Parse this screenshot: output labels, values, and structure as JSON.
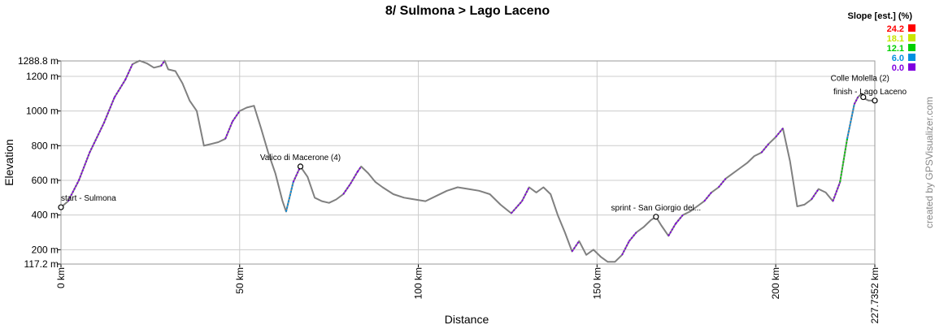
{
  "chart_data": {
    "type": "area",
    "title": "8/ Sulmona > Lago Laceno",
    "xlabel": "Distance",
    "ylabel": "Elevation",
    "xlim": [
      0,
      227.7352
    ],
    "ylim": [
      117.2,
      1288.8
    ],
    "x_ticks": [
      0,
      50,
      100,
      150,
      200,
      227.7352
    ],
    "x_tick_labels": [
      "0 km",
      "50 km",
      "100 km",
      "150 km",
      "200 km",
      "227.7352 km"
    ],
    "y_ticks": [
      117.2,
      200,
      400,
      600,
      800,
      1000,
      1200,
      1288.8
    ],
    "y_tick_labels": [
      "117.2 m",
      "200 m",
      "400 m",
      "600 m",
      "800 m",
      "1000 m",
      "1200 m",
      "1288.8 m"
    ],
    "grid": true,
    "line_color": "#808080",
    "legend": {
      "title": "Slope [est.] (%)",
      "placement": "top-right",
      "entries": [
        {
          "label": "24.2",
          "color": "#ff0000"
        },
        {
          "label": "18.1",
          "color": "#c8e600"
        },
        {
          "label": "12.1",
          "color": "#00d000"
        },
        {
          "label": "6.0",
          "color": "#0090e0"
        },
        {
          "label": "0.0",
          "color": "#8000e0"
        }
      ]
    },
    "series": [
      {
        "x": [
          0,
          2,
          5,
          8,
          12,
          15,
          18,
          20,
          22,
          24,
          26,
          28,
          29,
          30,
          32,
          34,
          36,
          38,
          40,
          42,
          44,
          46,
          48,
          50,
          52,
          54,
          56,
          58,
          60,
          62,
          63,
          65,
          67,
          69,
          71,
          73,
          75,
          77,
          79,
          81,
          83,
          84,
          86,
          88,
          90,
          93,
          96,
          99,
          102,
          105,
          108,
          111,
          114,
          117,
          120,
          123,
          126,
          129,
          131,
          133,
          135,
          137,
          139,
          141,
          143,
          145,
          147,
          149,
          151,
          153,
          155,
          157,
          159,
          161,
          163,
          165,
          166.5,
          168,
          170,
          172,
          174,
          176,
          178,
          180,
          182,
          184,
          186,
          188,
          190,
          192,
          194,
          196,
          198,
          200,
          202,
          204,
          206,
          208,
          210,
          212,
          214,
          216,
          218,
          220,
          222,
          223,
          224,
          225,
          226,
          227.7352
        ],
        "y": [
          445,
          480,
          600,
          760,
          930,
          1080,
          1180,
          1270,
          1290,
          1275,
          1250,
          1260,
          1290,
          1240,
          1230,
          1160,
          1060,
          1000,
          800,
          810,
          820,
          840,
          940,
          1000,
          1020,
          1030,
          900,
          760,
          640,
          480,
          420,
          590,
          680,
          620,
          500,
          480,
          470,
          490,
          520,
          580,
          650,
          680,
          640,
          590,
          560,
          520,
          500,
          490,
          480,
          510,
          540,
          560,
          550,
          540,
          520,
          460,
          410,
          480,
          560,
          530,
          560,
          520,
          400,
          300,
          190,
          250,
          170,
          200,
          160,
          130,
          130,
          170,
          250,
          300,
          330,
          370,
          390,
          340,
          280,
          350,
          400,
          420,
          450,
          480,
          530,
          560,
          610,
          640,
          670,
          700,
          740,
          760,
          810,
          850,
          900,
          710,
          450,
          460,
          490,
          550,
          530,
          480,
          590,
          840,
          1040,
          1080,
          1100,
          1070,
          1060,
          1060
        ]
      }
    ],
    "waypoints": [
      {
        "label": "start - Sulmona",
        "x": 0,
        "y": 445
      },
      {
        "label": "Valico di Macerone (4)",
        "x": 67,
        "y": 680
      },
      {
        "label": "sprint - San Giorgio del...",
        "x": 166.5,
        "y": 390
      },
      {
        "label": "Colle Molella (2)",
        "x": 224.5,
        "y": 1080
      },
      {
        "label": "finish - Lago Laceno",
        "x": 227.7352,
        "y": 1060
      }
    ]
  },
  "credit": "created by GPSVisualizer.com"
}
